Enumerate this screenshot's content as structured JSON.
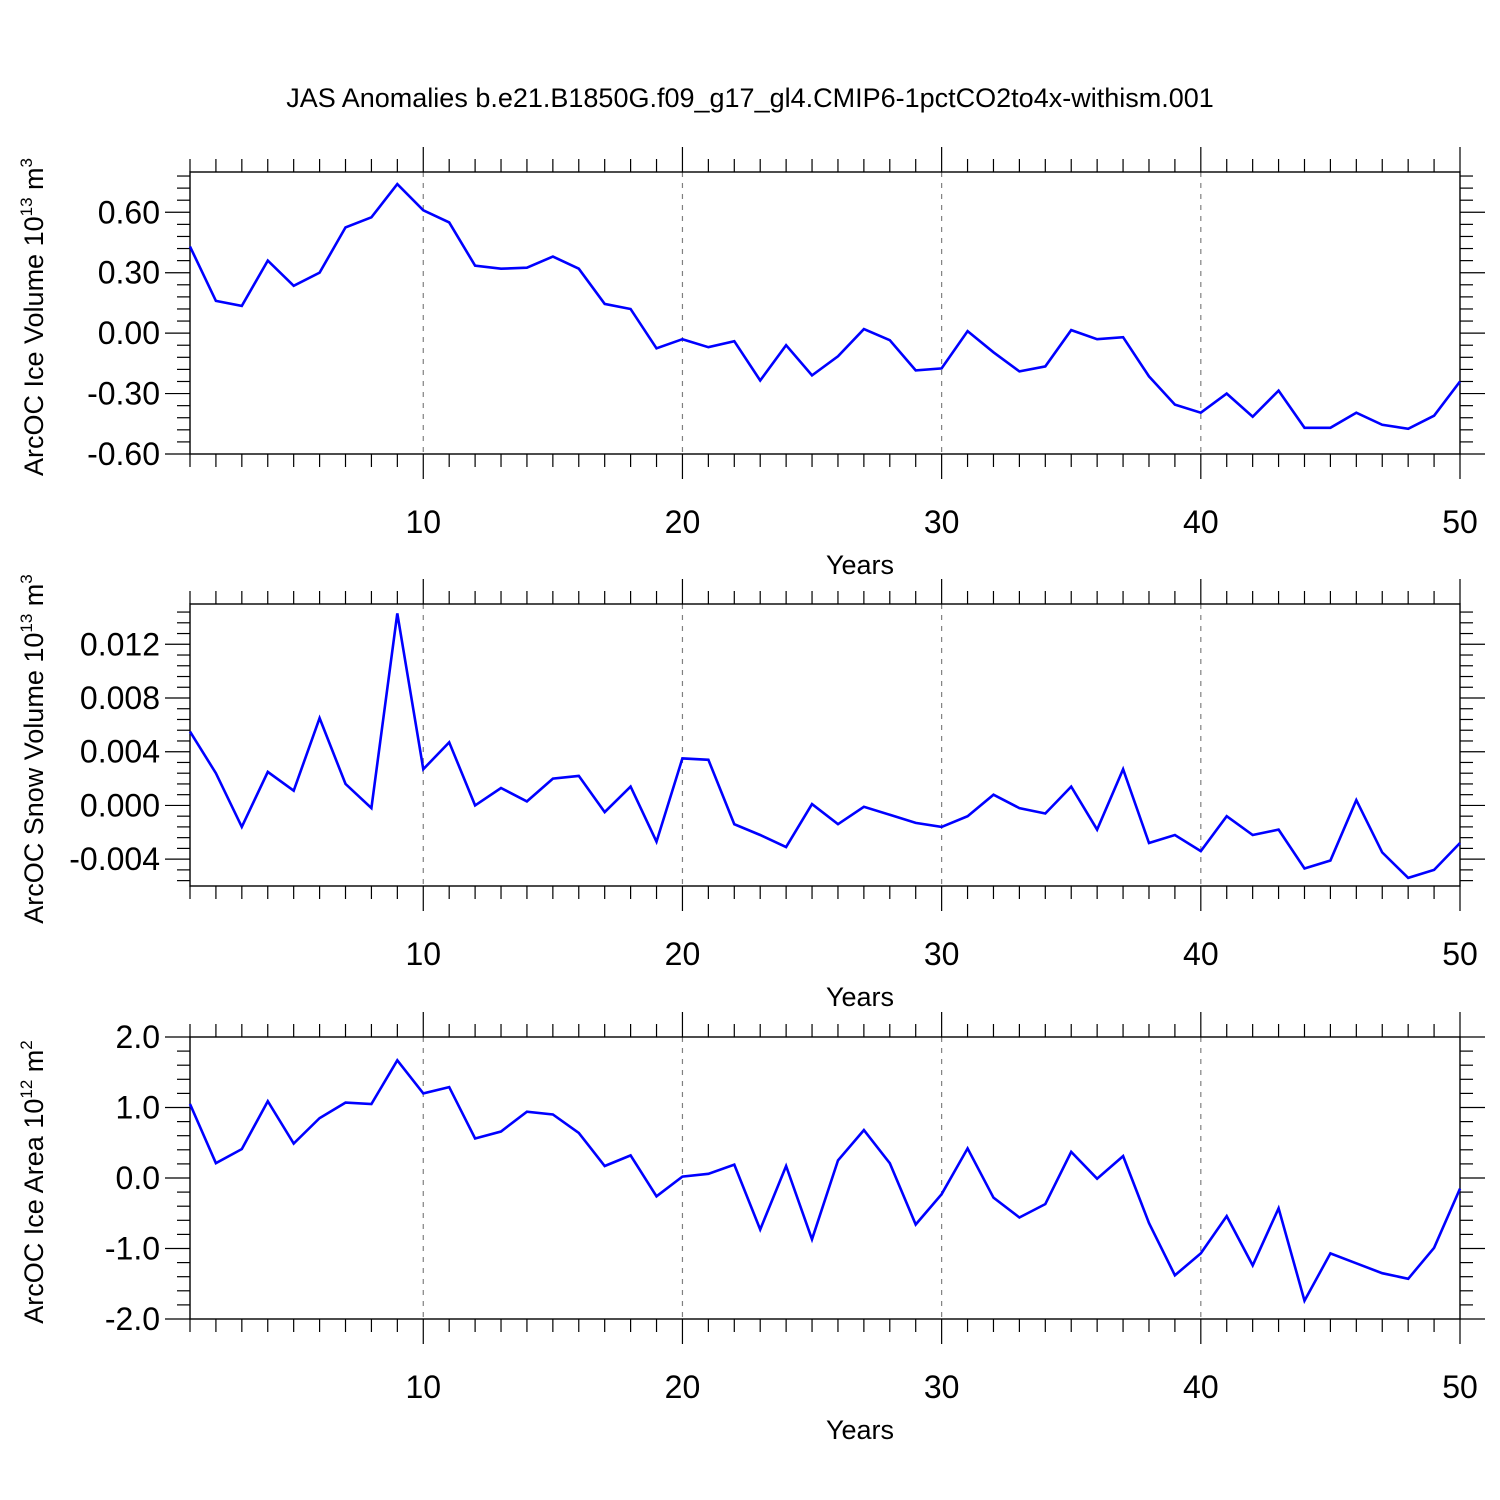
{
  "title": "JAS Anomalies b.e21.B1850G.f09_g17_gl4.CMIP6-1pctCO2to4x-withism.001",
  "colors": {
    "line": "#0000ff",
    "axis": "#000000",
    "grid": "#808080"
  },
  "chart_data": [
    {
      "type": "line",
      "ylabel": {
        "text": "ArcOC Ice Volume 10",
        "exponent": "13",
        "unit": "m",
        "unit_exponent": "3"
      },
      "xlabel": "Years",
      "xlim": [
        1,
        50
      ],
      "ylim": [
        -0.6,
        0.8
      ],
      "yticks": [
        "0.60",
        "0.30",
        "0.00",
        "-0.30",
        "-0.60"
      ],
      "ytick_values": [
        0.6,
        0.3,
        0.0,
        -0.3,
        -0.6
      ],
      "xticks": [
        "10",
        "20",
        "30",
        "40",
        "50"
      ],
      "xtick_values": [
        10,
        20,
        30,
        40,
        50
      ],
      "grid_x": true,
      "x": [
        1,
        2,
        3,
        4,
        5,
        6,
        7,
        8,
        9,
        10,
        11,
        12,
        13,
        14,
        15,
        16,
        17,
        18,
        19,
        20,
        21,
        22,
        23,
        24,
        25,
        26,
        27,
        28,
        29,
        30,
        31,
        32,
        33,
        34,
        35,
        36,
        37,
        38,
        39,
        40,
        41,
        42,
        43,
        44,
        45,
        46,
        47,
        48,
        49,
        50
      ],
      "values": [
        0.43,
        0.16,
        0.135,
        0.36,
        0.235,
        0.3,
        0.525,
        0.575,
        0.74,
        0.61,
        0.55,
        0.335,
        0.32,
        0.325,
        0.38,
        0.32,
        0.145,
        0.12,
        -0.075,
        -0.03,
        -0.07,
        -0.04,
        -0.235,
        -0.06,
        -0.21,
        -0.115,
        0.02,
        -0.035,
        -0.185,
        -0.175,
        0.01,
        -0.095,
        -0.19,
        -0.165,
        0.015,
        -0.03,
        -0.02,
        -0.215,
        -0.355,
        -0.395,
        -0.3,
        -0.415,
        -0.285,
        -0.47,
        -0.47,
        -0.395,
        -0.455,
        -0.475,
        -0.41,
        -0.24
      ]
    },
    {
      "type": "line",
      "ylabel": {
        "text": "ArcOC Snow Volume 10",
        "exponent": "13",
        "unit": "m",
        "unit_exponent": "3"
      },
      "xlabel": "Years",
      "xlim": [
        1,
        50
      ],
      "ylim": [
        -0.006,
        0.015
      ],
      "yticks": [
        "0.012",
        "0.008",
        "0.004",
        "0.000",
        "-0.004"
      ],
      "ytick_values": [
        0.012,
        0.008,
        0.004,
        0.0,
        -0.004
      ],
      "xticks": [
        "10",
        "20",
        "30",
        "40",
        "50"
      ],
      "xtick_values": [
        10,
        20,
        30,
        40,
        50
      ],
      "grid_x": true,
      "x": [
        1,
        2,
        3,
        4,
        5,
        6,
        7,
        8,
        9,
        10,
        11,
        12,
        13,
        14,
        15,
        16,
        17,
        18,
        19,
        20,
        21,
        22,
        23,
        24,
        25,
        26,
        27,
        28,
        29,
        30,
        31,
        32,
        33,
        34,
        35,
        36,
        37,
        38,
        39,
        40,
        41,
        42,
        43,
        44,
        45,
        46,
        47,
        48,
        49,
        50
      ],
      "values": [
        0.0055,
        0.0024,
        -0.0016,
        0.0025,
        0.0011,
        0.0065,
        0.0016,
        -0.0002,
        0.0143,
        0.0027,
        0.0047,
        0.0,
        0.0013,
        0.0003,
        0.002,
        0.0022,
        -0.0005,
        0.0014,
        -0.0027,
        0.0035,
        0.0034,
        -0.0014,
        -0.0022,
        -0.0031,
        0.0001,
        -0.0014,
        -0.0001,
        -0.0007,
        -0.0013,
        -0.0016,
        -0.0008,
        0.0008,
        -0.0002,
        -0.0006,
        0.0014,
        -0.0018,
        0.0027,
        -0.0028,
        -0.0022,
        -0.0034,
        -0.0008,
        -0.0022,
        -0.0018,
        -0.0047,
        -0.0041,
        0.0004,
        -0.0035,
        -0.0054,
        -0.0048,
        -0.0028
      ]
    },
    {
      "type": "line",
      "ylabel": {
        "text": "ArcOC Ice Area 10",
        "exponent": "12",
        "unit": "m",
        "unit_exponent": "2"
      },
      "xlabel": "Years",
      "xlim": [
        1,
        50
      ],
      "ylim": [
        -2.0,
        2.0
      ],
      "yticks": [
        "2.0",
        "1.0",
        "0.0",
        "-1.0",
        "-2.0"
      ],
      "ytick_values": [
        2.0,
        1.0,
        0.0,
        -1.0,
        -2.0
      ],
      "xticks": [
        "10",
        "20",
        "30",
        "40",
        "50"
      ],
      "xtick_values": [
        10,
        20,
        30,
        40,
        50
      ],
      "grid_x": true,
      "x": [
        1,
        2,
        3,
        4,
        5,
        6,
        7,
        8,
        9,
        10,
        11,
        12,
        13,
        14,
        15,
        16,
        17,
        18,
        19,
        20,
        21,
        22,
        23,
        24,
        25,
        26,
        27,
        28,
        29,
        30,
        31,
        32,
        33,
        34,
        35,
        36,
        37,
        38,
        39,
        40,
        41,
        42,
        43,
        44,
        45,
        46,
        47,
        48,
        49,
        50
      ],
      "values": [
        1.05,
        0.21,
        0.41,
        1.09,
        0.49,
        0.85,
        1.07,
        1.05,
        1.67,
        1.2,
        1.29,
        0.56,
        0.66,
        0.94,
        0.9,
        0.64,
        0.17,
        0.32,
        -0.26,
        0.02,
        0.06,
        0.19,
        -0.73,
        0.17,
        -0.87,
        0.25,
        0.68,
        0.21,
        -0.66,
        -0.23,
        0.42,
        -0.28,
        -0.56,
        -0.37,
        0.37,
        -0.01,
        0.31,
        -0.64,
        -1.38,
        -1.07,
        -0.54,
        -1.24,
        -0.43,
        -1.74,
        -1.07,
        -1.21,
        -1.35,
        -1.43,
        -0.99,
        -0.15
      ]
    }
  ]
}
